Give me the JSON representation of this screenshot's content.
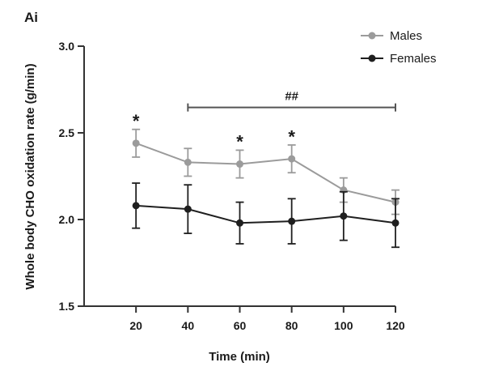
{
  "panel_label": "Ai",
  "chart_data": {
    "type": "line",
    "title": "",
    "xlabel": "Time (min)",
    "ylabel": "Whole body CHO oxidation rate (g/min)",
    "x_ticks": [
      20,
      40,
      60,
      80,
      100,
      120
    ],
    "y_ticks": [
      1.5,
      2.0,
      2.5,
      3.0
    ],
    "y_tick_labels": [
      "1.5",
      "2.0",
      "2.5",
      "3.0"
    ],
    "xlim": [
      0,
      120
    ],
    "ylim": [
      1.5,
      3.0
    ],
    "grid": false,
    "legend_position": "top-right",
    "x": [
      20,
      40,
      60,
      80,
      100,
      120
    ],
    "series": [
      {
        "name": "Males",
        "color": "#9b9b9b",
        "values": [
          2.44,
          2.33,
          2.32,
          2.35,
          2.17,
          2.1
        ],
        "error": [
          0.08,
          0.08,
          0.08,
          0.08,
          0.07,
          0.07
        ]
      },
      {
        "name": "Females",
        "color": "#1f1f1f",
        "values": [
          2.08,
          2.06,
          1.98,
          1.99,
          2.02,
          1.98
        ],
        "error": [
          0.13,
          0.14,
          0.12,
          0.13,
          0.14,
          0.14
        ]
      }
    ],
    "annotations": [
      {
        "text": "*",
        "x": 20,
        "y": 2.57
      },
      {
        "text": "*",
        "x": 60,
        "y": 2.45
      },
      {
        "text": "*",
        "x": 80,
        "y": 2.48
      }
    ],
    "bracket": {
      "text": "##",
      "x_start": 40,
      "x_end": 120,
      "y": 2.74
    }
  }
}
